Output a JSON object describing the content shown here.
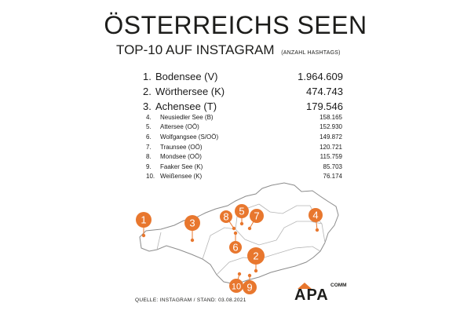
{
  "title": "ÖSTERREICHS SEEN",
  "subtitle": "TOP-10 AUF INSTAGRAM",
  "subtitle_note": "(ANZAHL HASHTAGS)",
  "accent_color": "#e8772e",
  "top3": [
    {
      "rank": "1.",
      "name": "Bodensee (V)",
      "value": "1.964.609"
    },
    {
      "rank": "2.",
      "name": "Wörthersee (K)",
      "value": "474.743"
    },
    {
      "rank": "3.",
      "name": "Achensee (T)",
      "value": "179.546"
    }
  ],
  "rest": [
    {
      "rank": "4.",
      "name": "Neusiedler See (B)",
      "value": "158.165"
    },
    {
      "rank": "5.",
      "name": "Attersee (OÖ)",
      "value": "152.930"
    },
    {
      "rank": "6.",
      "name": "Wolfgangsee (S/OÖ)",
      "value": "149.872"
    },
    {
      "rank": "7.",
      "name": "Traunsee (OÖ)",
      "value": "120.721"
    },
    {
      "rank": "8.",
      "name": "Mondsee (OÖ)",
      "value": "115.759"
    },
    {
      "rank": "9.",
      "name": "Faaker See (K)",
      "value": "85.703"
    },
    {
      "rank": "10.",
      "name": "Weißensee (K)",
      "value": "76.174"
    }
  ],
  "map_markers": [
    "1",
    "2",
    "3",
    "4",
    "5",
    "6",
    "7",
    "8",
    "9",
    "10"
  ],
  "footer": "QUELLE: INSTAGRAM / STAND: 03.08.2021",
  "logo": {
    "brand": "APA",
    "sub": "COMM"
  }
}
